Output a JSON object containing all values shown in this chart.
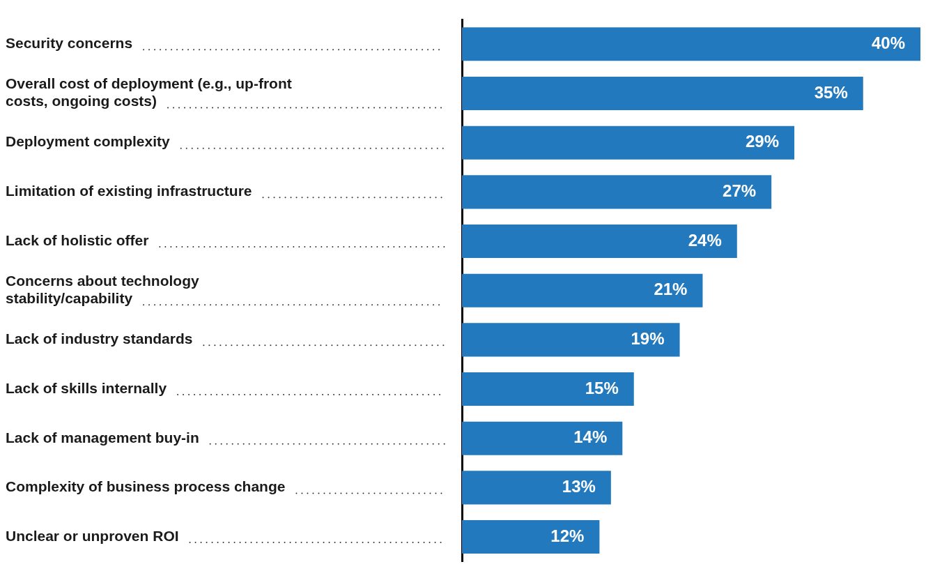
{
  "chart_data": {
    "type": "bar",
    "orientation": "horizontal",
    "categories": [
      "Security concerns",
      "Overall cost of deployment (e.g., up-front costs, ongoing costs)",
      "Deployment complexity",
      "Limitation of existing infrastructure",
      "Lack of holistic offer",
      "Concerns about technology stability/capability",
      "Lack of industry standards",
      "Lack of skills internally",
      "Lack of management buy-in",
      "Complexity of business process change",
      "Unclear or unproven ROI"
    ],
    "values": [
      40,
      35,
      29,
      27,
      24,
      21,
      19,
      15,
      14,
      13,
      12
    ],
    "value_labels": [
      "40%",
      "35%",
      "29%",
      "27%",
      "24%",
      "21%",
      "19%",
      "15%",
      "14%",
      "13%",
      "12%"
    ],
    "color": "#2379bd",
    "grid": false,
    "legend": false
  }
}
